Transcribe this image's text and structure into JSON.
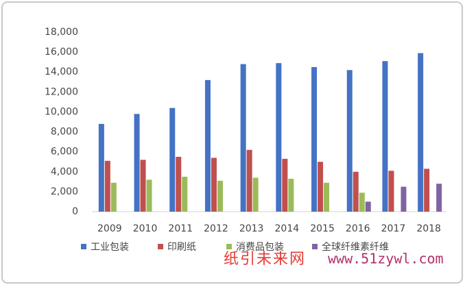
{
  "chart_data": {
    "type": "bar",
    "categories": [
      "2009",
      "2010",
      "2011",
      "2012",
      "2013",
      "2014",
      "2015",
      "2016",
      "2017",
      "2018"
    ],
    "series": [
      {
        "name": "工业包装",
        "color": "#4472c4",
        "values": [
          8800,
          9800,
          10400,
          13200,
          14800,
          14900,
          14500,
          14200,
          15100,
          15900
        ]
      },
      {
        "name": "印刷纸",
        "color": "#c0504d",
        "values": [
          5100,
          5200,
          5500,
          5400,
          6200,
          5300,
          5000,
          4000,
          4100,
          4300
        ]
      },
      {
        "name": "消费品包装",
        "color": "#9bbb59",
        "values": [
          2900,
          3200,
          3500,
          3100,
          3400,
          3300,
          2900,
          1900,
          null,
          null
        ]
      },
      {
        "name": "全球纤维素纤维",
        "color": "#8064a2",
        "values": [
          null,
          null,
          null,
          null,
          null,
          null,
          null,
          1000,
          2500,
          2800
        ]
      }
    ],
    "ylim": [
      0,
      18000
    ],
    "yticks": [
      0,
      {
        "value": 2000,
        "label": "2,000"
      },
      {
        "value": 4000,
        "label": "4,000"
      },
      {
        "value": 6000,
        "label": "6,000"
      },
      {
        "value": 8000,
        "label": "8,000"
      },
      {
        "value": 10000,
        "label": "10,000"
      },
      {
        "value": 12000,
        "label": "12,000"
      },
      {
        "value": 14000,
        "label": "14,000"
      },
      {
        "value": 16000,
        "label": "16,000"
      },
      {
        "value": 18000,
        "label": "18,000"
      }
    ],
    "legend": "bottom",
    "watermark": {
      "site": "纸引未来网",
      "url": "www.51zywl.com"
    }
  }
}
